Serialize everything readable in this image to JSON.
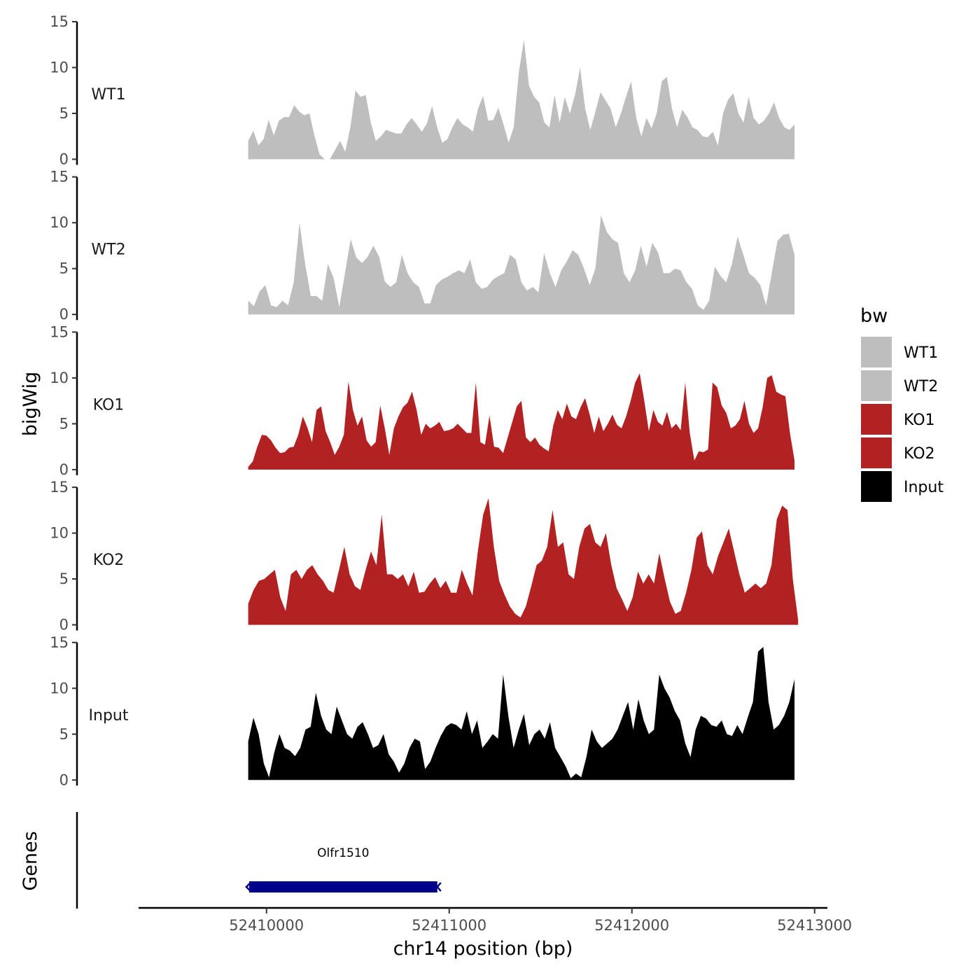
{
  "chart_data": {
    "type": "area",
    "y_axis_title": "bigWig",
    "gene_axis_title": "Genes",
    "x_axis_title": "chr14 position (bp)",
    "x_range": [
      52409300,
      52413070
    ],
    "x_ticks": [
      52410000,
      52411000,
      52412000,
      52413000
    ],
    "x_tick_labels": [
      "52410000",
      "52411000",
      "52412000",
      "52413000"
    ],
    "y_range": [
      0,
      15
    ],
    "y_ticks": [
      0,
      5,
      10,
      15
    ],
    "y_tick_labels": [
      "0",
      "5",
      "10",
      "15"
    ],
    "legend": {
      "title": "bw",
      "entries": [
        {
          "label": "WT1",
          "color": "#bebebe"
        },
        {
          "label": "WT2",
          "color": "#bebebe"
        },
        {
          "label": "KO1",
          "color": "#b22222"
        },
        {
          "label": "KO2",
          "color": "#b22222"
        },
        {
          "label": "Input",
          "color": "#000000"
        }
      ]
    },
    "tracks": [
      {
        "name": "WT1",
        "color": "#bebebe",
        "x_start": 52409900,
        "x_end": 52412890,
        "values": [
          2.0,
          3.1,
          1.5,
          2.2,
          4.3,
          2.6,
          4.2,
          4.6,
          4.6,
          5.9,
          5.2,
          4.8,
          5.0,
          2.5,
          0.5,
          0.0,
          0.0,
          1.0,
          2.0,
          0.8,
          3.5,
          7.5,
          6.8,
          7.0,
          4.0,
          2.0,
          2.5,
          3.2,
          3.0,
          2.8,
          2.8,
          3.8,
          4.5,
          3.8,
          3.0,
          3.9,
          5.8,
          3.5,
          1.8,
          2.2,
          3.5,
          4.5,
          3.8,
          3.5,
          3.0,
          5.5,
          6.9,
          4.2,
          4.3,
          5.6,
          3.8,
          1.8,
          3.5,
          9.5,
          13.0,
          8.0,
          6.8,
          6.2,
          4.0,
          3.5,
          7.0,
          4.0,
          6.8,
          5.0,
          7.0,
          10.0,
          5.5,
          3.2,
          5.2,
          7.3,
          6.4,
          5.5,
          3.5,
          5.0,
          6.8,
          8.5,
          4.5,
          2.5,
          4.5,
          3.4,
          5.0,
          8.5,
          9.0,
          5.5,
          3.5,
          5.4,
          4.6,
          3.5,
          3.2,
          2.5,
          2.4,
          3.0,
          1.5,
          5.0,
          6.5,
          7.2,
          5.0,
          4.0,
          6.8,
          4.5,
          3.8,
          4.2,
          5.0,
          6.2,
          4.5,
          3.5,
          3.2,
          3.8
        ]
      },
      {
        "name": "WT2",
        "color": "#bebebe",
        "x_start": 52409900,
        "x_end": 52412890,
        "values": [
          1.5,
          0.9,
          2.5,
          3.2,
          1.0,
          0.8,
          1.5,
          1.0,
          3.5,
          10.0,
          5.5,
          2.0,
          2.0,
          1.5,
          5.5,
          4.0,
          0.8,
          4.5,
          8.2,
          6.2,
          5.6,
          6.3,
          7.5,
          6.3,
          3.6,
          3.0,
          3.5,
          6.5,
          4.5,
          3.5,
          3.0,
          1.2,
          1.2,
          3.2,
          3.8,
          4.1,
          4.5,
          4.8,
          4.5,
          6.0,
          3.5,
          2.8,
          3.0,
          3.8,
          4.2,
          4.5,
          6.5,
          6.0,
          3.5,
          2.6,
          3.0,
          2.4,
          6.7,
          4.5,
          3.0,
          4.8,
          5.8,
          7.0,
          6.5,
          5.0,
          3.2,
          5.0,
          10.8,
          9.0,
          8.2,
          7.8,
          4.5,
          3.5,
          4.8,
          7.5,
          5.2,
          7.8,
          6.8,
          4.5,
          4.5,
          5.0,
          4.8,
          3.5,
          2.8,
          1.0,
          0.5,
          1.5,
          5.2,
          4.2,
          3.5,
          5.5,
          8.5,
          6.5,
          4.5,
          4.0,
          3.2,
          1.0,
          4.5,
          8.0,
          8.7,
          8.8,
          6.5
        ]
      },
      {
        "name": "KO1",
        "color": "#b22222",
        "x_start": 52409900,
        "x_end": 52412890,
        "values": [
          0.3,
          0.9,
          2.5,
          3.8,
          3.7,
          3.2,
          2.4,
          1.8,
          1.9,
          2.4,
          2.5,
          3.8,
          5.8,
          4.6,
          3.0,
          6.5,
          6.9,
          4.2,
          3.0,
          1.6,
          2.5,
          3.8,
          9.6,
          6.5,
          4.8,
          5.8,
          3.2,
          2.5,
          3.0,
          7.0,
          4.5,
          1.6,
          4.5,
          5.8,
          6.8,
          7.3,
          8.5,
          6.5,
          3.8,
          5.0,
          4.5,
          4.8,
          5.2,
          4.2,
          4.3,
          4.5,
          5.0,
          4.5,
          4.0,
          4.0,
          9.5,
          3.0,
          2.7,
          5.9,
          2.5,
          2.4,
          1.8,
          3.5,
          5.2,
          6.9,
          7.5,
          3.5,
          3.0,
          3.5,
          2.7,
          2.3,
          2.0,
          4.8,
          6.5,
          5.5,
          7.2,
          5.8,
          5.5,
          6.8,
          7.8,
          6.0,
          4.0,
          5.8,
          4.2,
          5.0,
          6.0,
          4.9,
          4.5,
          5.8,
          7.5,
          9.5,
          10.5,
          7.5,
          4.2,
          6.5,
          5.2,
          4.8,
          6.3,
          4.5,
          5.0,
          4.3,
          9.5,
          4.0,
          1.0,
          2.0,
          1.9,
          2.2,
          9.5,
          9.0,
          7.0,
          6.2,
          4.5,
          4.8,
          5.5,
          7.5,
          5.0,
          4.0,
          4.5,
          6.8,
          10.0,
          10.3,
          8.5,
          8.2,
          8.0,
          4.0,
          1.0
        ]
      },
      {
        "name": "KO2",
        "color": "#b22222",
        "x_start": 52409900,
        "x_end": 52412910,
        "values": [
          2.3,
          3.8,
          4.8,
          5.0,
          5.5,
          6.0,
          3.0,
          1.5,
          5.5,
          6.0,
          5.0,
          6.0,
          6.5,
          5.5,
          4.8,
          3.8,
          3.5,
          6.0,
          8.5,
          5.5,
          4.2,
          3.8,
          6.0,
          8.0,
          6.5,
          12.0,
          5.5,
          5.5,
          5.0,
          5.5,
          4.2,
          5.8,
          3.5,
          3.6,
          4.5,
          5.2,
          4.0,
          4.8,
          3.5,
          3.5,
          6.0,
          4.5,
          3.2,
          8.0,
          12.0,
          13.8,
          8.5,
          4.8,
          3.3,
          2.0,
          1.2,
          0.8,
          2.0,
          4.2,
          6.5,
          7.0,
          8.5,
          12.5,
          8.5,
          9.0,
          5.5,
          5.0,
          8.5,
          10.5,
          11.0,
          9.0,
          8.5,
          10.0,
          6.5,
          4.0,
          2.8,
          1.5,
          3.0,
          5.8,
          4.5,
          5.5,
          4.5,
          7.8,
          5.0,
          2.5,
          1.2,
          1.5,
          3.5,
          6.0,
          9.5,
          10.2,
          6.5,
          5.5,
          7.5,
          9.0,
          10.5,
          8.0,
          5.5,
          3.5,
          4.0,
          4.5,
          4.0,
          4.5,
          6.5,
          11.5,
          13.0,
          12.5,
          5.0,
          0.5
        ]
      },
      {
        "name": "Input",
        "color": "#000000",
        "x_start": 52409900,
        "x_end": 52412890,
        "values": [
          4.2,
          6.8,
          5.0,
          1.8,
          0.3,
          3.0,
          5.0,
          3.5,
          3.2,
          2.6,
          3.5,
          5.5,
          5.8,
          9.5,
          7.0,
          5.5,
          5.0,
          8.0,
          6.5,
          5.0,
          4.5,
          5.8,
          6.3,
          5.0,
          3.5,
          3.8,
          5.0,
          2.8,
          2.0,
          0.8,
          1.8,
          3.5,
          4.5,
          4.2,
          1.2,
          2.0,
          3.5,
          4.8,
          5.8,
          6.2,
          6.0,
          5.5,
          7.5,
          5.0,
          6.5,
          3.5,
          4.2,
          5.0,
          4.5,
          11.5,
          7.0,
          3.5,
          5.5,
          7.2,
          3.8,
          5.0,
          5.5,
          4.5,
          6.3,
          3.5,
          2.5,
          1.5,
          0.2,
          0.7,
          0.3,
          2.5,
          5.5,
          4.2,
          3.5,
          4.0,
          4.5,
          5.5,
          7.0,
          8.5,
          5.5,
          8.8,
          6.5,
          5.0,
          5.5,
          11.5,
          10.0,
          9.0,
          7.5,
          6.5,
          4.0,
          2.5,
          5.5,
          7.0,
          6.7,
          6.0,
          5.8,
          6.5,
          5.0,
          4.8,
          6.0,
          5.0,
          6.8,
          8.5,
          14.0,
          14.5,
          8.5,
          5.5,
          6.0,
          7.0,
          8.5,
          11.0
        ]
      }
    ],
    "genes": [
      {
        "name": "Olfr1510",
        "start": 52409905,
        "end": 52410935,
        "strand": "-",
        "color": "#00008b"
      }
    ]
  }
}
